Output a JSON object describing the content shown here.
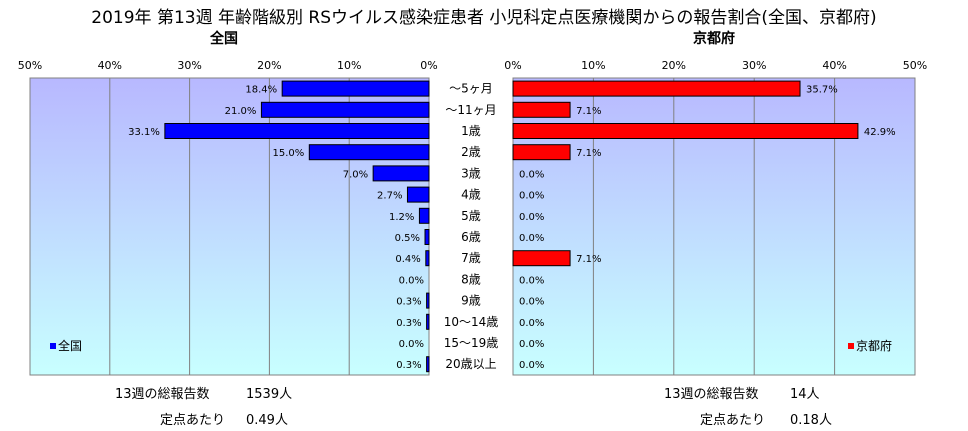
{
  "title": "2019年 第13週 年齢階級別 RSウイルス感染症患者 小児科定点医療機関からの報告割合(全国、京都府)",
  "chart_data": [
    {
      "type": "bar",
      "orientation": "horizontal",
      "title": "全国",
      "categories": [
        "〜5ヶ月",
        "〜11ヶ月",
        "1歳",
        "2歳",
        "3歳",
        "4歳",
        "5歳",
        "6歳",
        "7歳",
        "8歳",
        "9歳",
        "10〜14歳",
        "15〜19歳",
        "20歳以上"
      ],
      "series": [
        {
          "name": "全国",
          "color": "#0000ff",
          "values": [
            18.4,
            21.0,
            33.1,
            15.0,
            7.0,
            2.7,
            1.2,
            0.5,
            0.4,
            0.0,
            0.3,
            0.3,
            0.0,
            0.3
          ],
          "labels": [
            "18.4%",
            "21.0%",
            "33.1%",
            "15.0%",
            "7.0%",
            "2.7%",
            "1.2%",
            "0.5%",
            "0.4%",
            "0.0%",
            "0.3%",
            "0.3%",
            "0.0%",
            "0.3%"
          ]
        }
      ],
      "xlim": [
        0,
        50
      ],
      "x_reversed": true,
      "ticks": [
        "50%",
        "40%",
        "30%",
        "20%",
        "10%",
        "0%"
      ],
      "grid": true,
      "legend": "bottom-left"
    },
    {
      "type": "bar",
      "orientation": "horizontal",
      "title": "京都府",
      "categories": [
        "〜5ヶ月",
        "〜11ヶ月",
        "1歳",
        "2歳",
        "3歳",
        "4歳",
        "5歳",
        "6歳",
        "7歳",
        "8歳",
        "9歳",
        "10〜14歳",
        "15〜19歳",
        "20歳以上"
      ],
      "series": [
        {
          "name": "京都府",
          "color": "#ff0000",
          "values": [
            35.7,
            7.1,
            42.9,
            7.1,
            0.0,
            0.0,
            0.0,
            0.0,
            7.1,
            0.0,
            0.0,
            0.0,
            0.0,
            0.0
          ],
          "labels": [
            "35.7%",
            "7.1%",
            "42.9%",
            "7.1%",
            "0.0%",
            "0.0%",
            "0.0%",
            "0.0%",
            "7.1%",
            "0.0%",
            "0.0%",
            "0.0%",
            "0.0%",
            "0.0%"
          ]
        }
      ],
      "xlim": [
        0,
        50
      ],
      "ticks": [
        "0%",
        "10%",
        "20%",
        "30%",
        "40%",
        "50%"
      ],
      "grid": true,
      "legend": "bottom-right"
    }
  ],
  "stats": {
    "national_total_label": "13週の総報告数",
    "national_total_value": "1539人",
    "national_per_site_label": "定点あたり",
    "national_per_site_value": "0.49人",
    "kyoto_total_label": "13週の総報告数",
    "kyoto_total_value": "14人",
    "kyoto_per_site_label": "定点あたり",
    "kyoto_per_site_value": "0.18人"
  },
  "colors": {
    "plot_top": "#b8b8ff",
    "plot_bottom": "#c8ffff",
    "national_bar": "#0000ff",
    "kyoto_bar": "#ff0000"
  }
}
